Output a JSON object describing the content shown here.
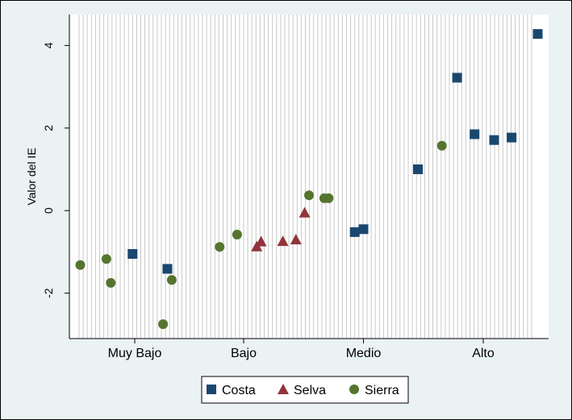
{
  "chart_data": {
    "type": "scatter",
    "ylabel": "Valor del IE",
    "xlabel": "",
    "ylim": [
      -3.1,
      4.75
    ],
    "yticks": [
      -2,
      0,
      2,
      4
    ],
    "x_categories": [
      "Muy Bajo",
      "Bajo",
      "Medio",
      "Alto"
    ],
    "xlim": [
      0.5,
      22.5
    ],
    "x_category_positions": [
      3.5,
      8.5,
      14.0,
      19.5
    ],
    "grid": "vertical lines",
    "legend_position": "bottom",
    "series": [
      {
        "name": "Costa",
        "marker": "square",
        "color": "#1a476f",
        "points": [
          [
            3.4,
            -1.05
          ],
          [
            5.0,
            -1.41
          ],
          [
            13.6,
            -0.52
          ],
          [
            14.0,
            -0.45
          ],
          [
            16.5,
            1.0
          ],
          [
            18.3,
            3.22
          ],
          [
            19.1,
            1.85
          ],
          [
            20.0,
            1.71
          ],
          [
            20.8,
            1.77
          ],
          [
            22.0,
            4.28
          ]
        ]
      },
      {
        "name": "Selva",
        "marker": "triangle",
        "color": "#90353b",
        "points": [
          [
            9.1,
            -0.87
          ],
          [
            9.3,
            -0.75
          ],
          [
            10.3,
            -0.74
          ],
          [
            10.9,
            -0.7
          ],
          [
            11.3,
            -0.05
          ]
        ]
      },
      {
        "name": "Sierra",
        "marker": "circle",
        "color": "#55752f",
        "points": [
          [
            1.0,
            -1.32
          ],
          [
            2.2,
            -1.17
          ],
          [
            2.4,
            -1.75
          ],
          [
            4.8,
            -2.75
          ],
          [
            5.2,
            -1.68
          ],
          [
            7.4,
            -0.88
          ],
          [
            8.2,
            -0.58
          ],
          [
            11.5,
            0.37
          ],
          [
            12.2,
            0.3
          ],
          [
            12.4,
            0.3
          ],
          [
            17.6,
            1.57
          ]
        ]
      }
    ]
  }
}
